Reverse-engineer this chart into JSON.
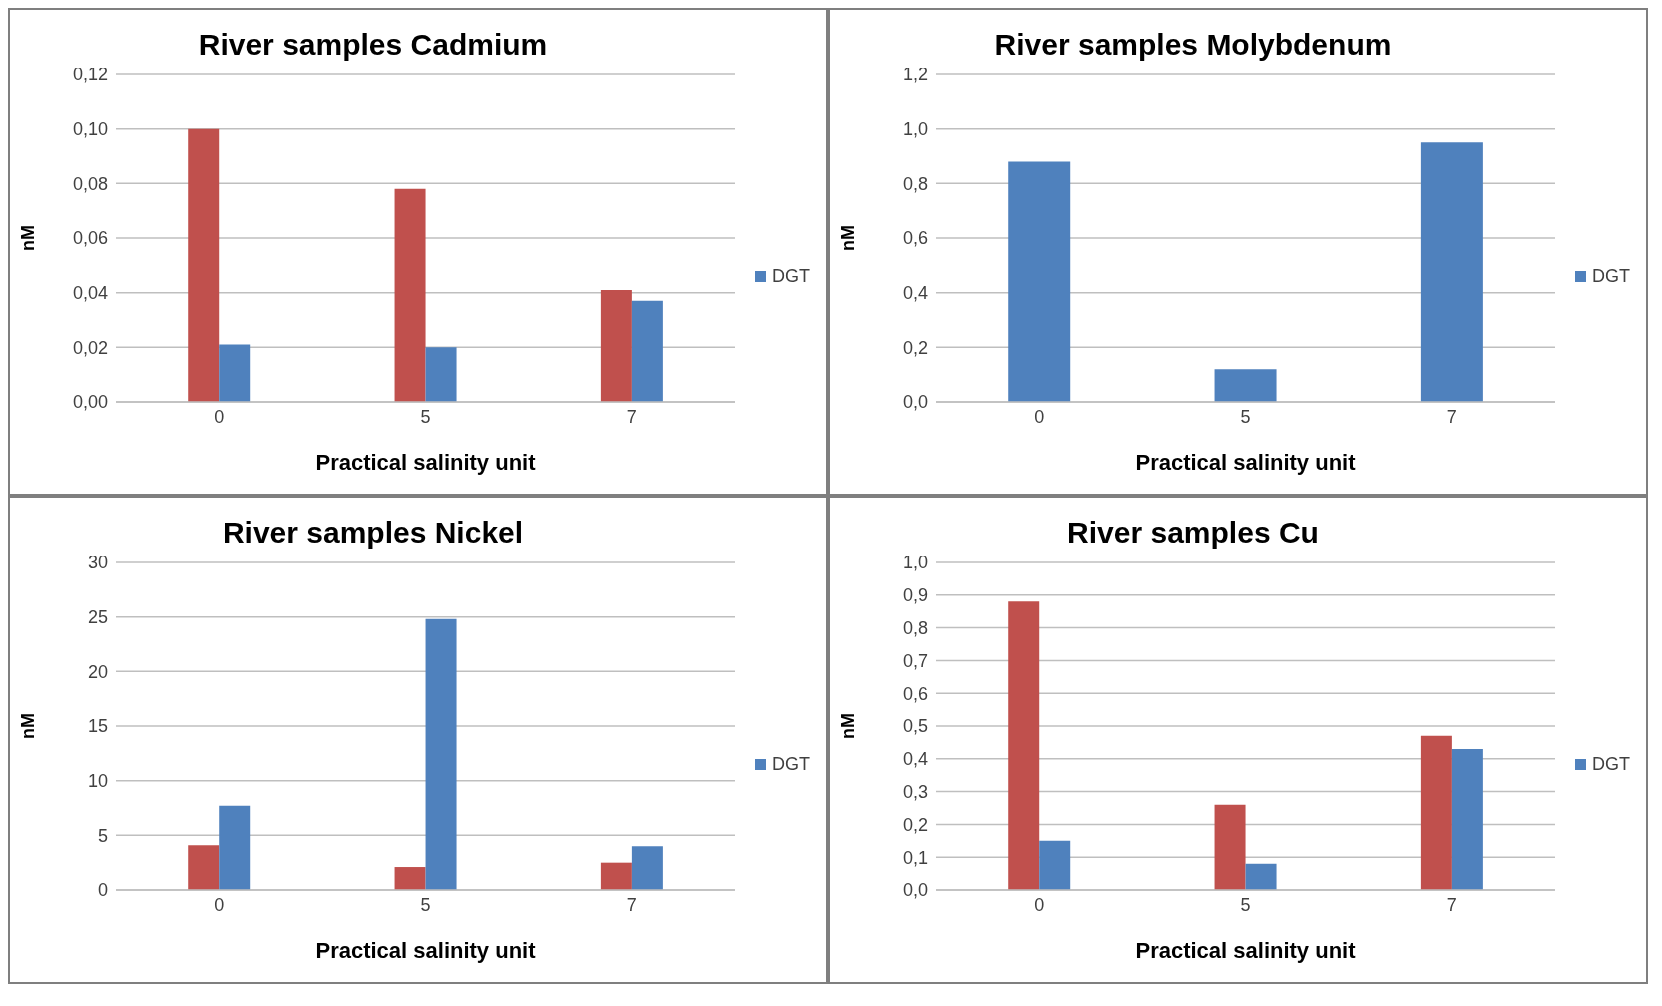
{
  "chart_data": [
    {
      "type": "bar",
      "title": "River samples Cadmium",
      "xlabel": "Practical salinity unit",
      "ylabel": "nM",
      "categories": [
        "0",
        "5",
        "7"
      ],
      "series": [
        {
          "color": "#c0504d",
          "values": [
            0.1,
            0.078,
            0.041
          ]
        },
        {
          "name": "DGT",
          "color": "#4f81bd",
          "values": [
            0.021,
            0.02,
            0.037
          ]
        }
      ],
      "ylim": [
        0,
        0.12
      ],
      "yticks": [
        {
          "value": 0,
          "label": "0,00"
        },
        {
          "value": 0.02,
          "label": "0,02"
        },
        {
          "value": 0.04,
          "label": "0,04"
        },
        {
          "value": 0.06,
          "label": "0,06"
        },
        {
          "value": 0.08,
          "label": "0,08"
        },
        {
          "value": 0.1,
          "label": "0,10"
        },
        {
          "value": 0.12,
          "label": "0,12"
        }
      ],
      "grid": "y",
      "legend": "right"
    },
    {
      "type": "bar",
      "title": "River samples Molybdenum",
      "xlabel": "Practical salinity unit",
      "ylabel": "nM",
      "categories": [
        "0",
        "5",
        "7"
      ],
      "series": [
        {
          "name": "DGT",
          "color": "#4f81bd",
          "values": [
            0.88,
            0.12,
            0.95
          ]
        }
      ],
      "ylim": [
        0,
        1.2
      ],
      "yticks": [
        {
          "value": 0,
          "label": "0,0"
        },
        {
          "value": 0.2,
          "label": "0,2"
        },
        {
          "value": 0.4,
          "label": "0,4"
        },
        {
          "value": 0.6,
          "label": "0,6"
        },
        {
          "value": 0.8,
          "label": "0,8"
        },
        {
          "value": 1.0,
          "label": "1,0"
        },
        {
          "value": 1.2,
          "label": "1,2"
        }
      ],
      "grid": "y",
      "legend": "right"
    },
    {
      "type": "bar",
      "title": "River samples Nickel",
      "xlabel": "Practical salinity unit",
      "ylabel": "nM",
      "categories": [
        "0",
        "5",
        "7"
      ],
      "series": [
        {
          "color": "#c0504d",
          "values": [
            4.1,
            2.1,
            2.5
          ]
        },
        {
          "name": "DGT",
          "color": "#4f81bd",
          "values": [
            7.7,
            24.8,
            4.0
          ]
        }
      ],
      "ylim": [
        0,
        30
      ],
      "yticks": [
        0,
        5,
        10,
        15,
        20,
        25,
        30
      ],
      "grid": "y",
      "legend": "right"
    },
    {
      "type": "bar",
      "title": "River samples Cu",
      "xlabel": "Practical salinity unit",
      "ylabel": "nM",
      "categories": [
        "0",
        "5",
        "7"
      ],
      "series": [
        {
          "color": "#c0504d",
          "values": [
            0.88,
            0.26,
            0.47
          ]
        },
        {
          "name": "DGT",
          "color": "#4f81bd",
          "values": [
            0.15,
            0.08,
            0.43
          ]
        }
      ],
      "ylim": [
        0,
        1.0
      ],
      "yticks": [
        {
          "value": 0,
          "label": "0,0"
        },
        {
          "value": 0.1,
          "label": "0,1"
        },
        {
          "value": 0.2,
          "label": "0,2"
        },
        {
          "value": 0.3,
          "label": "0,3"
        },
        {
          "value": 0.4,
          "label": "0,4"
        },
        {
          "value": 0.5,
          "label": "0,5"
        },
        {
          "value": 0.6,
          "label": "0,6"
        },
        {
          "value": 0.7,
          "label": "0,7"
        },
        {
          "value": 0.8,
          "label": "0,8"
        },
        {
          "value": 0.9,
          "label": "0,9"
        },
        {
          "value": 1.0,
          "label": "1,0"
        }
      ],
      "grid": "y",
      "legend": "right"
    }
  ]
}
